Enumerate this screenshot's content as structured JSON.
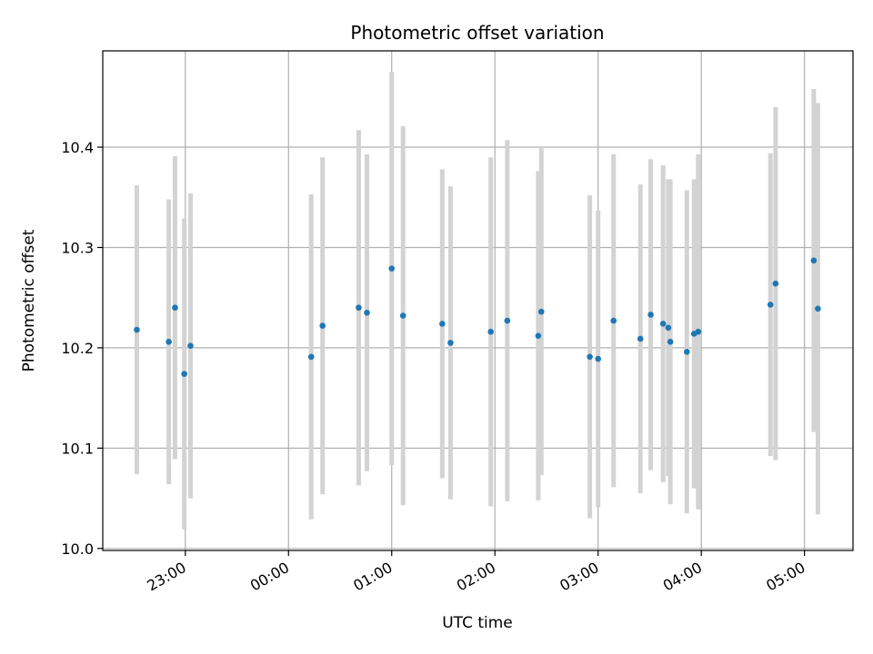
{
  "chart_data": {
    "type": "scatter",
    "title": "Photometric offset variation",
    "xlabel": "UTC time",
    "ylabel": "Photometric offset",
    "grid": true,
    "xlim_hours": [
      22.2,
      29.47
    ],
    "ylim": [
      9.998,
      10.496
    ],
    "x_ticks": [
      {
        "hour": 23,
        "label": "23:00"
      },
      {
        "hour": 24,
        "label": "00:00"
      },
      {
        "hour": 25,
        "label": "01:00"
      },
      {
        "hour": 26,
        "label": "02:00"
      },
      {
        "hour": 27,
        "label": "03:00"
      },
      {
        "hour": 28,
        "label": "04:00"
      },
      {
        "hour": 29,
        "label": "05:00"
      }
    ],
    "y_ticks": [
      {
        "value": 10.0,
        "label": "10.0"
      },
      {
        "value": 10.1,
        "label": "10.1"
      },
      {
        "value": 10.2,
        "label": "10.2"
      },
      {
        "value": 10.3,
        "label": "10.3"
      },
      {
        "value": 10.4,
        "label": "10.4"
      }
    ],
    "colors": {
      "point": "#1f77b4",
      "errorbar": "#d3d3d3",
      "grid": "#b0b0b0"
    },
    "points": [
      {
        "hour": 22.53,
        "y": 10.218,
        "err": 0.144
      },
      {
        "hour": 22.84,
        "y": 10.206,
        "err": 0.142
      },
      {
        "hour": 22.9,
        "y": 10.24,
        "err": 0.151
      },
      {
        "hour": 22.99,
        "y": 10.174,
        "err": 0.155
      },
      {
        "hour": 23.05,
        "y": 10.202,
        "err": 0.152
      },
      {
        "hour": 24.22,
        "y": 10.191,
        "err": 0.162
      },
      {
        "hour": 24.33,
        "y": 10.222,
        "err": 0.168
      },
      {
        "hour": 24.68,
        "y": 10.24,
        "err": 0.177
      },
      {
        "hour": 24.76,
        "y": 10.235,
        "err": 0.158
      },
      {
        "hour": 25.0,
        "y": 10.279,
        "err": 0.196
      },
      {
        "hour": 25.11,
        "y": 10.232,
        "err": 0.189
      },
      {
        "hour": 25.49,
        "y": 10.224,
        "err": 0.154
      },
      {
        "hour": 25.57,
        "y": 10.205,
        "err": 0.156
      },
      {
        "hour": 25.96,
        "y": 10.216,
        "err": 0.174
      },
      {
        "hour": 26.12,
        "y": 10.227,
        "err": 0.18
      },
      {
        "hour": 26.42,
        "y": 10.212,
        "err": 0.164
      },
      {
        "hour": 26.45,
        "y": 10.236,
        "err": 0.163
      },
      {
        "hour": 26.92,
        "y": 10.191,
        "err": 0.161
      },
      {
        "hour": 27.0,
        "y": 10.189,
        "err": 0.148
      },
      {
        "hour": 27.15,
        "y": 10.227,
        "err": 0.166
      },
      {
        "hour": 27.41,
        "y": 10.209,
        "err": 0.154
      },
      {
        "hour": 27.51,
        "y": 10.233,
        "err": 0.155
      },
      {
        "hour": 27.63,
        "y": 10.224,
        "err": 0.158
      },
      {
        "hour": 27.68,
        "y": 10.22,
        "err": 0.148
      },
      {
        "hour": 27.7,
        "y": 10.206,
        "err": 0.162
      },
      {
        "hour": 27.86,
        "y": 10.196,
        "err": 0.161
      },
      {
        "hour": 27.93,
        "y": 10.214,
        "err": 0.154
      },
      {
        "hour": 27.97,
        "y": 10.216,
        "err": 0.177
      },
      {
        "hour": 28.67,
        "y": 10.243,
        "err": 0.151
      },
      {
        "hour": 28.72,
        "y": 10.264,
        "err": 0.176
      },
      {
        "hour": 29.09,
        "y": 10.287,
        "err": 0.171
      },
      {
        "hour": 29.13,
        "y": 10.239,
        "err": 0.205
      }
    ]
  }
}
